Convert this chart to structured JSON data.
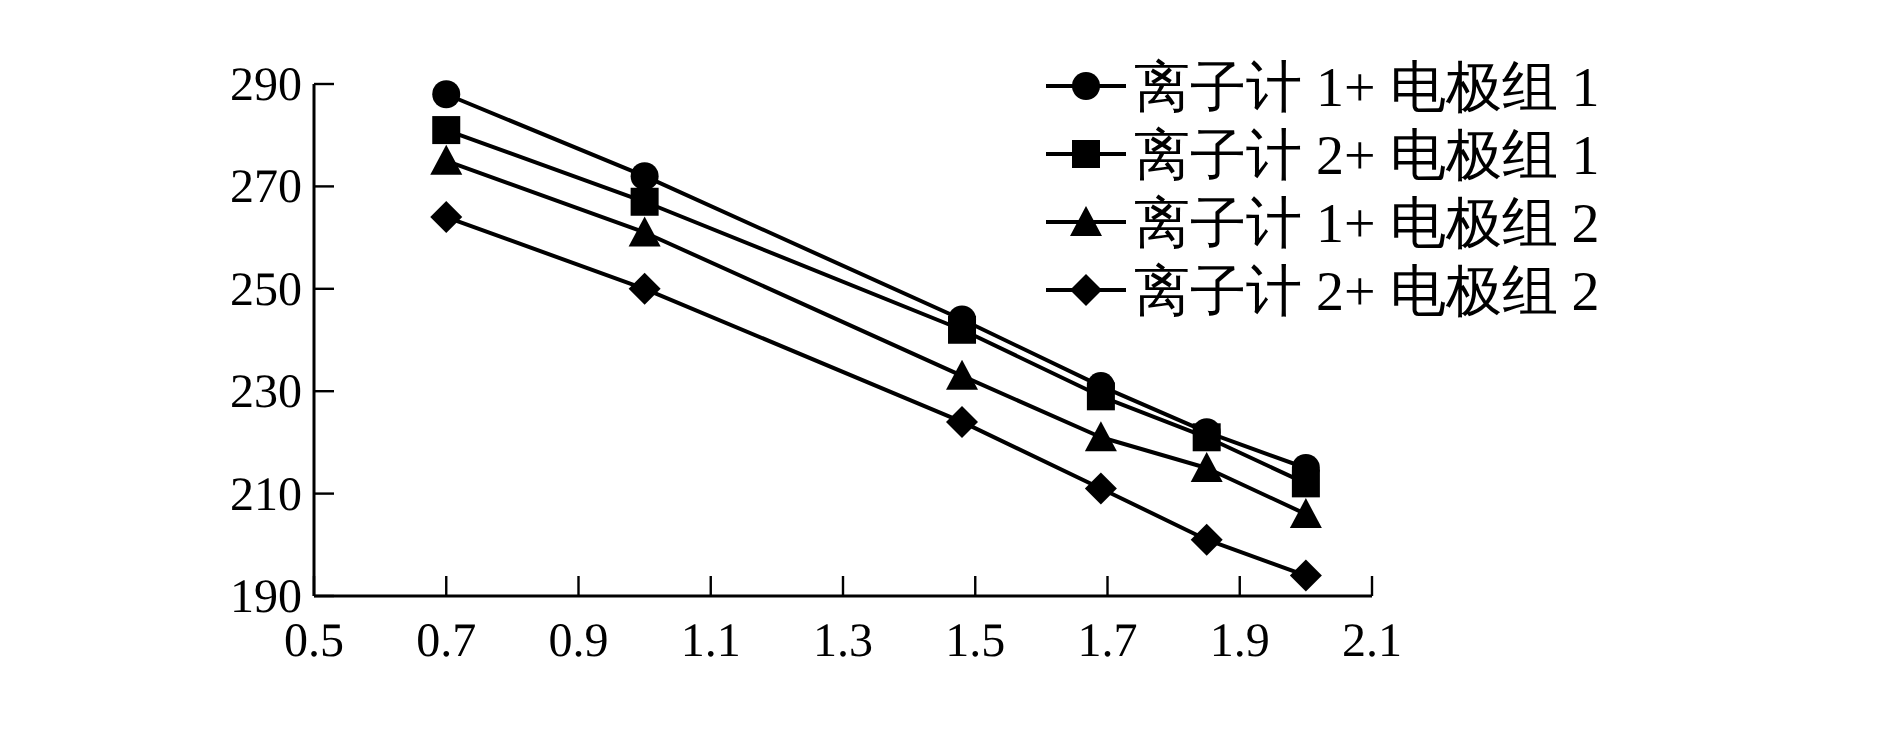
{
  "chart_data": {
    "type": "line",
    "xlim": [
      0.5,
      2.1
    ],
    "xticks": [
      0.5,
      0.7,
      0.9,
      1.1,
      1.3,
      1.5,
      1.7,
      1.9,
      2.1
    ],
    "ylim": [
      190,
      290
    ],
    "yticks": [
      190,
      210,
      230,
      250,
      270,
      290
    ],
    "grid": false,
    "legend": "top right",
    "line_style": "solid",
    "series": [
      {
        "name": "离子计 1+ 电极组 1",
        "color": "#000000",
        "marker": "circle",
        "x": [
          0.7,
          1.0,
          1.48,
          1.69,
          1.85,
          2.0
        ],
        "values": [
          288,
          272,
          244,
          231,
          222,
          215
        ]
      },
      {
        "name": "离子计 2+ 电极组 1",
        "color": "#000000",
        "marker": "square",
        "x": [
          0.7,
          1.0,
          1.48,
          1.69,
          1.85,
          2.0
        ],
        "values": [
          281,
          267,
          242,
          229,
          221,
          212
        ]
      },
      {
        "name": "离子计 1+ 电极组 2",
        "color": "#000000",
        "marker": "triangle",
        "x": [
          0.7,
          1.0,
          1.48,
          1.69,
          1.85,
          2.0
        ],
        "values": [
          275,
          261,
          233,
          221,
          215,
          206
        ]
      },
      {
        "name": "离子计 2+ 电极组 2",
        "color": "#000000",
        "marker": "diamond",
        "x": [
          0.7,
          1.0,
          1.48,
          1.69,
          1.85,
          2.0
        ],
        "values": [
          264,
          250,
          224,
          211,
          201,
          194
        ]
      }
    ]
  }
}
